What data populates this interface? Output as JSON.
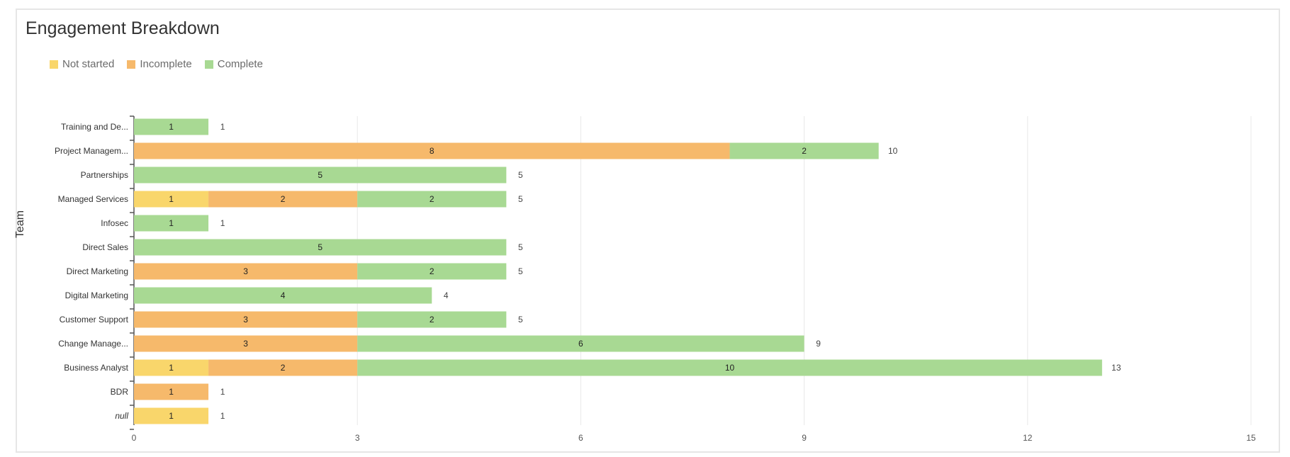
{
  "title": "Engagement Breakdown",
  "legend": [
    {
      "label": "Not started",
      "color": "#f9d66b"
    },
    {
      "label": "Incomplete",
      "color": "#f6b96b"
    },
    {
      "label": "Complete",
      "color": "#a8d993"
    }
  ],
  "chart_data": {
    "type": "bar",
    "orientation": "horizontal",
    "stacked": true,
    "title": "Engagement Breakdown",
    "xlabel": "",
    "ylabel": "Team",
    "xlim": [
      0,
      15
    ],
    "xticks": [
      0,
      3,
      6,
      9,
      12,
      15
    ],
    "grid": "vertical",
    "legend_position": "top-left",
    "categories": [
      "Training and De...",
      "Project Managem...",
      "Partnerships",
      "Managed Services",
      "Infosec",
      "Direct Sales",
      "Direct Marketing",
      "Digital Marketing",
      "Customer Support",
      "Change Manage...",
      "Business Analyst",
      "BDR",
      "null"
    ],
    "series": [
      {
        "name": "Not started",
        "color": "#f9d66b",
        "values": [
          0,
          0,
          0,
          1,
          0,
          0,
          0,
          0,
          0,
          0,
          1,
          0,
          1
        ]
      },
      {
        "name": "Incomplete",
        "color": "#f6b96b",
        "values": [
          0,
          8,
          0,
          2,
          0,
          0,
          3,
          0,
          3,
          3,
          2,
          1,
          0
        ]
      },
      {
        "name": "Complete",
        "color": "#a8d993",
        "values": [
          1,
          2,
          5,
          2,
          1,
          5,
          2,
          4,
          2,
          6,
          10,
          0,
          0
        ]
      }
    ],
    "totals": [
      1,
      10,
      5,
      5,
      1,
      5,
      5,
      4,
      5,
      9,
      13,
      1,
      1
    ]
  }
}
